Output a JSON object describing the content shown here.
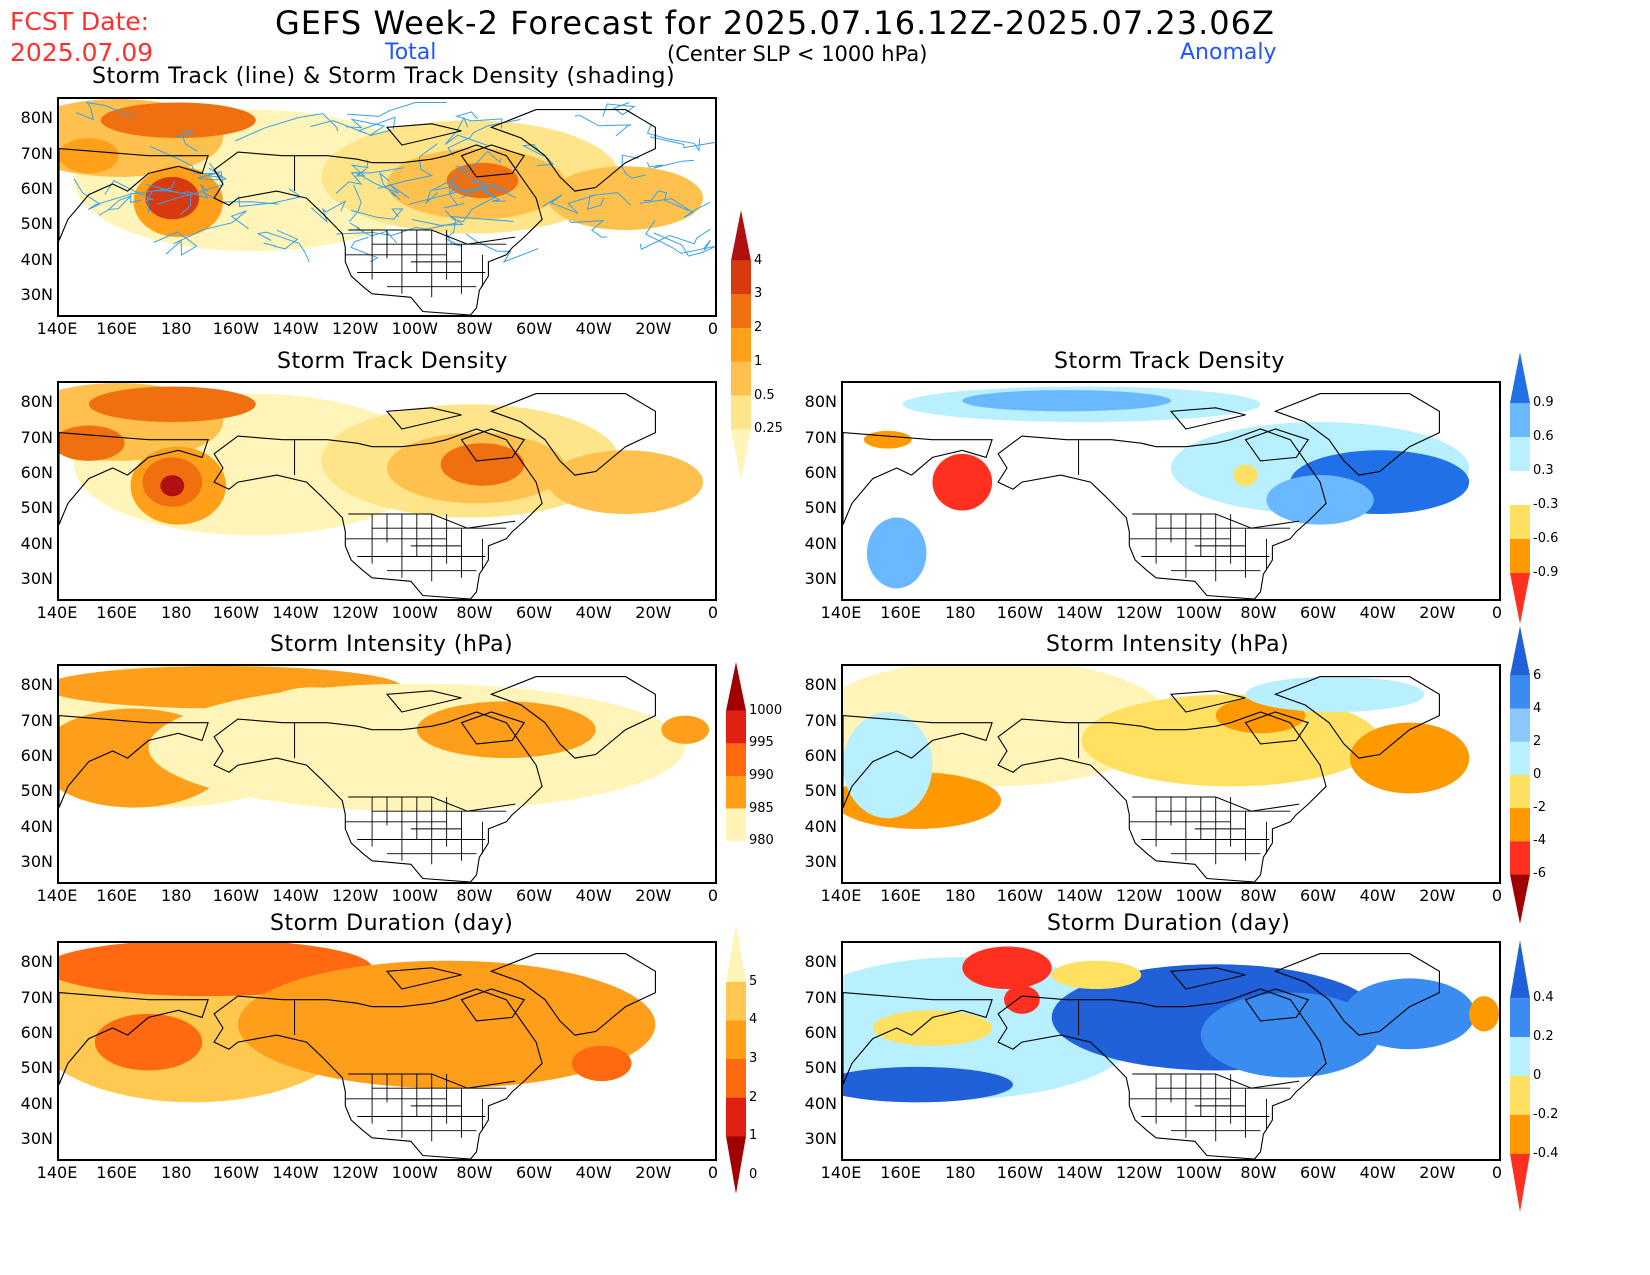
{
  "header": {
    "fcst_date_label": "FCST Date:",
    "fcst_date_value": "2025.07.09",
    "main_title": "GEFS Week-2 Forecast for 2025.07.16.12Z-2025.07.23.06Z",
    "subtitle": "(Center SLP < 1000 hPa)",
    "total_label": "Total",
    "anomaly_label": "Anomaly"
  },
  "axes": {
    "lat_ticks": [
      "80N",
      "70N",
      "60N",
      "50N",
      "40N",
      "30N"
    ],
    "lon_ticks": [
      "140E",
      "160E",
      "180",
      "160W",
      "140W",
      "120W",
      "100W",
      "80W",
      "60W",
      "40W",
      "20W",
      "0"
    ]
  },
  "panels": {
    "track": {
      "title": "Storm Track (line) & Storm Track Density (shading)"
    },
    "density_total": {
      "title": "Storm Track Density"
    },
    "density_anom": {
      "title": "Storm Track Density"
    },
    "intensity_total": {
      "title": "Storm Intensity (hPa)"
    },
    "intensity_anom": {
      "title": "Storm Intensity (hPa)"
    },
    "duration_total": {
      "title": "Storm Duration (day)"
    },
    "duration_anom": {
      "title": "Storm Duration (day)"
    }
  },
  "colorbars": {
    "density_total": {
      "ticks": [
        "4",
        "3",
        "2",
        "1",
        "0.5",
        "0.25"
      ],
      "colors": [
        "#fff5b8",
        "#ffe58a",
        "#ffc14d",
        "#ffa01a",
        "#f07010",
        "#d83a10",
        "#b01010"
      ]
    },
    "density_anom": {
      "ticks": [
        "0.9",
        "0.6",
        "0.3",
        "-0.3",
        "-0.6",
        "-0.9"
      ],
      "colors": [
        "#ff3020",
        "#ff9900",
        "#ffe060",
        "#ffffff",
        "#b8f0ff",
        "#6ab8ff",
        "#2070e8"
      ]
    },
    "intensity_total": {
      "ticks": [
        "1000",
        "995",
        "990",
        "985",
        "980"
      ],
      "colors": [
        "#ffffff",
        "#fff5b8",
        "#ff9e1a",
        "#ff6a10",
        "#e02010",
        "#a00000"
      ]
    },
    "intensity_anom": {
      "ticks": [
        "6",
        "4",
        "2",
        "0",
        "-2",
        "-4",
        "-6"
      ],
      "colors": [
        "#a00000",
        "#ff3020",
        "#ff9900",
        "#ffe060",
        "#b8f0ff",
        "#8ac8ff",
        "#3a8cf0",
        "#2060d8"
      ]
    },
    "duration_total": {
      "ticks": [
        "5",
        "4",
        "3",
        "2",
        "1",
        "0"
      ],
      "colors": [
        "#a00000",
        "#e02010",
        "#ff6a10",
        "#ff9e1a",
        "#ffc850",
        "#fff5b8"
      ]
    },
    "duration_anom": {
      "ticks": [
        "0.4",
        "0.2",
        "0",
        "-0.2",
        "-0.4"
      ],
      "colors": [
        "#ff3020",
        "#ff9900",
        "#ffe060",
        "#b8f0ff",
        "#3a8cf0",
        "#2060d8"
      ]
    }
  }
}
